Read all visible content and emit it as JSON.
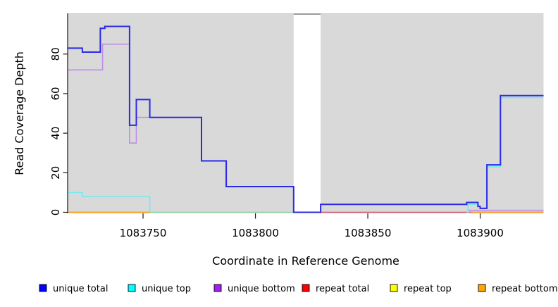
{
  "figure": {
    "xlabel": "Coordinate in Reference Genome",
    "ylabel": "Read Coverage Depth"
  },
  "legend": {
    "items": [
      {
        "label": "unique total",
        "color": "#0000ff"
      },
      {
        "label": "unique top",
        "color": "#00ffff"
      },
      {
        "label": "unique bottom",
        "color": "#a020f0"
      },
      {
        "label": "repeat total",
        "color": "#ff0000"
      },
      {
        "label": "repeat top",
        "color": "#ffff00"
      },
      {
        "label": "repeat bottom",
        "color": "#ffa500"
      }
    ],
    "item_x": [
      56,
      182,
      304,
      429,
      554,
      679
    ],
    "swatch_y": 404,
    "label_baseline_y": 414
  },
  "chart_data": {
    "type": "line",
    "step": true,
    "title": "",
    "xlabel": "Coordinate in Reference Genome",
    "ylabel": "Read Coverage Depth",
    "xlim": [
      1083716.6,
      1083928.2
    ],
    "ylim": [
      0,
      100.6
    ],
    "x_ticks": [
      1083750,
      1083800,
      1083850,
      1083900
    ],
    "y_ticks": [
      0,
      20,
      40,
      60,
      80
    ],
    "grid": false,
    "legend_position": "bottom",
    "panel_bg": "#d9d9d9",
    "no_data_gap": {
      "x_start": 1083817,
      "x_end": 1083829,
      "bridge_color": "#9c9c9c"
    },
    "series": [
      {
        "name": "repeat total",
        "legend_color": "#ff0000",
        "line_color": "#d6556e",
        "line_width": 1.6,
        "segments": [
          {
            "end": 1083928.2,
            "points": [
              [
                1083829,
                0
              ]
            ]
          }
        ]
      },
      {
        "name": "repeat top",
        "legend_color": "#ffff00",
        "line_color": "#90d7a4",
        "line_width": 1.6,
        "note": "zero-depth line; overlaps unique top at zero and renders pale green",
        "segments": [
          {
            "end": 1083817,
            "points": [
              [
                1083753,
                0
              ]
            ]
          }
        ]
      },
      {
        "name": "unique bottom",
        "legend_color": "#a020f0",
        "line_color": "#bf8de6",
        "line_width": 1.6,
        "segments": [
          {
            "end": 1083817,
            "points": [
              [
                1083716.6,
                72
              ],
              [
                1083732,
                85
              ],
              [
                1083744,
                35
              ],
              [
                1083747,
                48
              ],
              [
                1083776,
                26
              ],
              [
                1083787,
                13
              ],
              [
                1083817,
                0
              ]
            ]
          },
          {
            "end": 1083928.2,
            "points": [
              [
                1083895,
                1
              ]
            ]
          }
        ]
      },
      {
        "name": "unique top",
        "legend_color": "#00ffff",
        "line_color": "#74e9ee",
        "line_width": 1.6,
        "segments": [
          {
            "end": 1083753,
            "points": [
              [
                1083716.6,
                10
              ],
              [
                1083723,
                8
              ],
              [
                1083753,
                0
              ]
            ]
          },
          {
            "end": 1083928.2,
            "points": [
              [
                1083894,
                0
              ],
              [
                1083894.6,
                4
              ],
              [
                1083899,
                3
              ],
              [
                1083900,
                2
              ],
              [
                1083903,
                23
              ],
              [
                1083909,
                58
              ]
            ]
          }
        ]
      },
      {
        "name": "repeat bottom",
        "legend_color": "#ffa500",
        "line_color": "#ff9e1b",
        "line_width": 1.8,
        "segments": [
          {
            "end": 1083753,
            "points": [
              [
                1083716.6,
                0
              ]
            ]
          },
          {
            "end": 1083928.2,
            "points": [
              [
                1083896,
                0
              ]
            ]
          }
        ]
      },
      {
        "name": "unique total",
        "legend_color": "#0000ff",
        "line_color": "#2a2ae4",
        "line_width": 2,
        "segments": [
          {
            "end": 1083928.2,
            "points": [
              [
                1083716.6,
                83
              ],
              [
                1083723,
                81
              ],
              [
                1083731,
                93
              ],
              [
                1083733,
                94
              ],
              [
                1083744,
                44
              ],
              [
                1083747,
                57
              ],
              [
                1083753,
                48
              ],
              [
                1083776,
                26
              ],
              [
                1083787,
                13
              ],
              [
                1083817,
                0
              ],
              [
                1083829,
                4
              ],
              [
                1083894,
                5
              ],
              [
                1083899,
                3
              ],
              [
                1083900,
                2
              ],
              [
                1083903,
                24
              ],
              [
                1083909,
                59
              ]
            ]
          }
        ]
      }
    ]
  },
  "layout_colors": {
    "axis": "#1a1a1a",
    "panel_top_edge": "#c6c6c6"
  }
}
